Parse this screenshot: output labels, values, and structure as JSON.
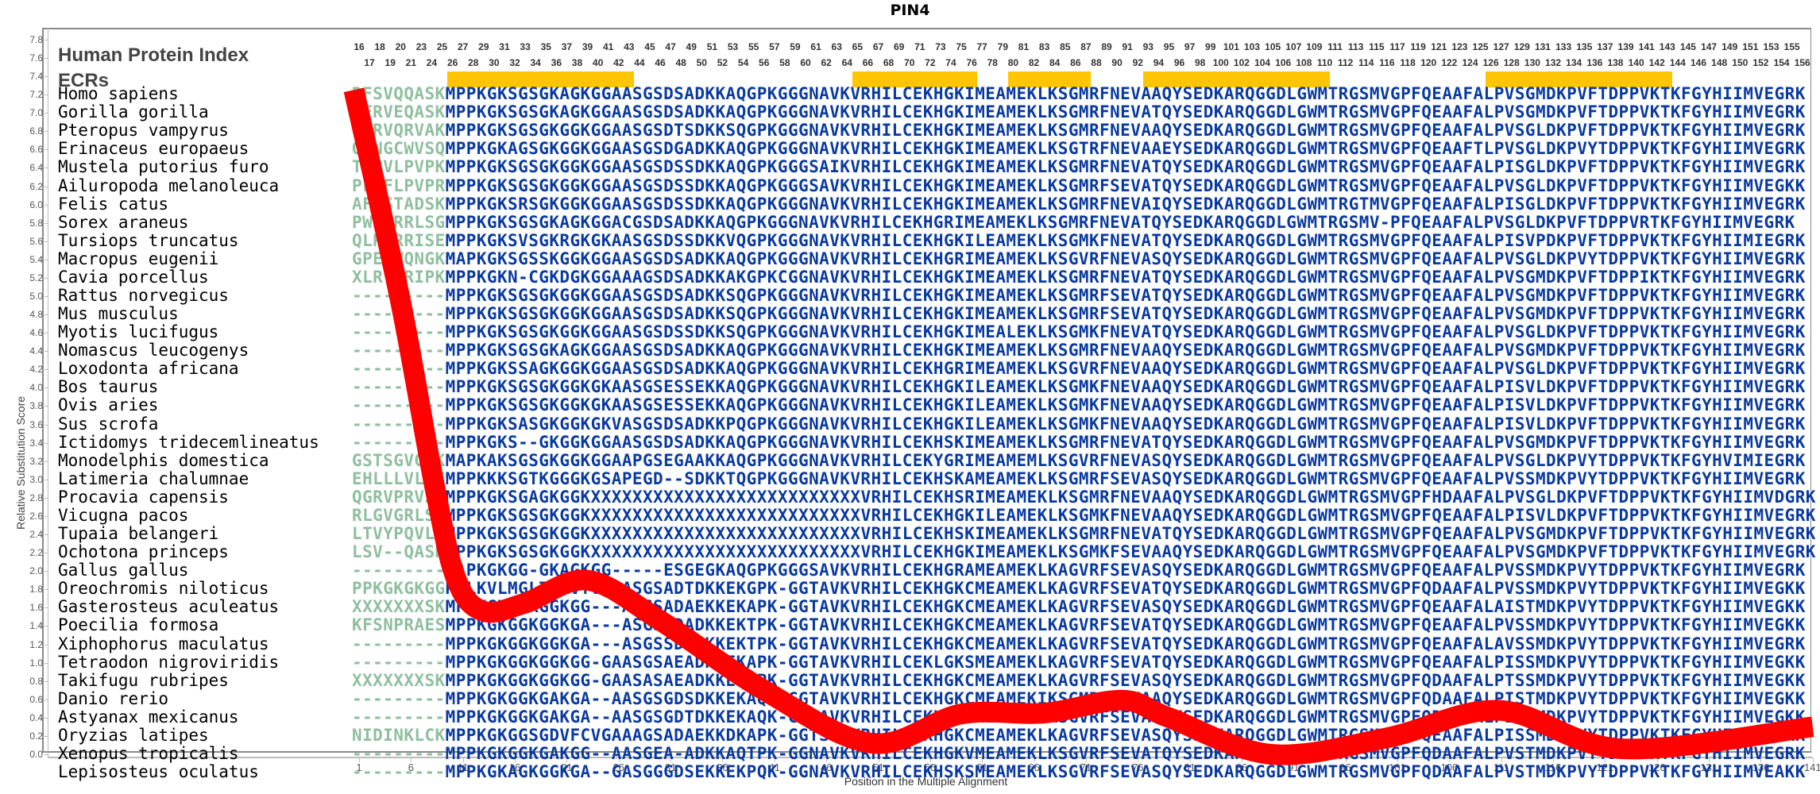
{
  "title": "PIN4",
  "header": {
    "line1": "Human Protein Index",
    "line2": "ECRs"
  },
  "y_axis": {
    "label": "Relative Substitution Score",
    "ticks": [
      "7.8",
      "7.6",
      "7.4",
      "7.2",
      "7.0",
      "6.8",
      "6.6",
      "6.4",
      "6.2",
      "6.0",
      "5.8",
      "5.6",
      "5.4",
      "5.2",
      "5.0",
      "4.8",
      "4.6",
      "4.4",
      "4.2",
      "4.0",
      "3.8",
      "3.6",
      "3.4",
      "3.2",
      "3.0",
      "2.8",
      "2.6",
      "2.4",
      "2.2",
      "2.0",
      "1.8",
      "1.6",
      "1.4",
      "1.2",
      "1.0",
      "0.8",
      "0.6",
      "0.4",
      "0.2",
      "0.0"
    ]
  },
  "x_axis": {
    "label": "Position in the Multiple Alignment",
    "ticks": [
      "1",
      "6",
      "11",
      "16",
      "21",
      "26",
      "31",
      "36",
      "41",
      "46",
      "51",
      "56",
      "61",
      "66",
      "71",
      "76",
      "81",
      "86",
      "91",
      "96",
      "101",
      "106",
      "111",
      "116",
      "121",
      "126",
      "131",
      "136",
      "141"
    ]
  },
  "ruler_labels": [
    "16",
    "17",
    "18",
    "19",
    "20",
    "21",
    "23",
    "24",
    "25",
    "26",
    "27",
    "28",
    "29",
    "30",
    "31",
    "32",
    "33",
    "34",
    "35",
    "36",
    "37",
    "38",
    "39",
    "40",
    "41",
    "42",
    "43",
    "44",
    "45",
    "46",
    "47",
    "48",
    "49",
    "50",
    "51",
    "52",
    "53",
    "54",
    "55",
    "56",
    "57",
    "58",
    "59",
    "60",
    "61",
    "62",
    "63",
    "64",
    "65",
    "66",
    "67",
    "68",
    "69",
    "70",
    "71",
    "72",
    "73",
    "74",
    "75",
    "76",
    "77",
    "78",
    "79",
    "80",
    "81",
    "82",
    "83",
    "84",
    "85",
    "86",
    "87",
    "88",
    "89",
    "90",
    "91",
    "92",
    "93",
    "94",
    "95",
    "96",
    "97",
    "98",
    "99",
    "100",
    "101",
    "102",
    "103",
    "104",
    "105",
    "106",
    "107",
    "108",
    "109",
    "110",
    "111",
    "112",
    "113",
    "114",
    "115",
    "116",
    "117",
    "118",
    "119",
    "120",
    "121",
    "122",
    "123",
    "124",
    "125",
    "126",
    "127",
    "128",
    "129",
    "130",
    "131",
    "132",
    "133",
    "134",
    "135",
    "136",
    "137",
    "138",
    "139",
    "140",
    "141",
    "142",
    "143",
    "144",
    "145",
    "146",
    "147",
    "148",
    "149",
    "150",
    "151",
    "152",
    "153",
    "154",
    "155",
    "156"
  ],
  "ecr_bars": [
    {
      "start_col": 9,
      "end_col": 26
    },
    {
      "start_col": 48,
      "end_col": 59
    },
    {
      "start_col": 63,
      "end_col": 70
    },
    {
      "start_col": 76,
      "end_col": 93
    },
    {
      "start_col": 109,
      "end_col": 126
    }
  ],
  "colors": {
    "ecr": "#ffc600",
    "curve": "#ff0000",
    "flank": "#8fbf9f",
    "aligned": "#0a3aa0"
  },
  "alignment": [
    {
      "species": "Homo sapiens",
      "flank": "RFSVQQASK",
      "seq": "MPPKGKSGSGKAGKGGAASGSDSADKKAQGPKGGGNAVKVRHILCEKHGKIMEAMEKLKSGMRFNEVAAQYSEDKARQGGDLGWMTRGSMVGPFQEAAFALPVSGMDKPVFTDPPVKTKFGYHIIMVEGRK"
    },
    {
      "species": "Gorilla gorilla",
      "flank": "QFRVEQASK",
      "seq": "MPPKGKSGSGKAGKGGAASGSDSADKKAQGPKGGGNAVKVRHILCEKHGKIMEAMEKLKSGMRFNEVATQYSEDKARQGGDLGWMTRGSMVGPFQEAAFALPVSGMDKPVFTDPPVKTKFGYHIIMVEGRK"
    },
    {
      "species": "Pteropus vampyrus",
      "flank": "QLRVQRVAK",
      "seq": "MPPKGKSGSGKGGKGGAASGSDTSDKKSQGPKGGGNAVKVRHILCEKHGKIMEAMEKLKSGMRFNEVAAQYSEDKARQGGDLGWMTRGSMVGPFQEAAFALPVSGLDKPVFTDPPVKTKFGYHIIMVEGRK"
    },
    {
      "species": "Erinaceus europaeus",
      "flank": "QLNGCWVSQ",
      "seq": "MPPKGKAGSGKGGKGGAASGSDGADKKAQGPKGGGNAVKVRHILCEKHGKIMEAMEKLKSGTRFNEVAAEYSEDKARQGGDLGWMTRGSMVGPFQEAAFTLPVSGLDKPVYTDPPVKTKFGYHIIMVEGRK"
    },
    {
      "species": "Mustela putorius furo",
      "flank": "TLRVLPVPK",
      "seq": "MPPKGKSGSGKGGKGGAASGSDSSDKKAQGPKGGGSAIKVRHILCEKHGKIMEAMEKLKSGMRFNEVATQYSEDKARQGGDLGWMTRGSMVGPFQEAAFALPISGLDKPVFTDPPVKTKFGYHIIMVEGRK"
    },
    {
      "species": "Ailuropoda melanoleuca",
      "flank": "PLRFLPVPR",
      "seq": "MPPKGKSGSGKGGKGGAASGSDSSDKKAQGPKGGGSAVKVRHILCEKHGKIMEAMEKLKSGMRFSEVATQYSEDKARQGGDLGWMTRGSMVGPFQEAAFALPVSGLDKPVFTDPPVKTKFGYHIIMVEGKK"
    },
    {
      "species": "Felis catus",
      "flank": "AFDSTADSK",
      "seq": "MPPKGKSRSGKGGKGGAASGSDSSDKKAQGPKGGGNAVKVRHILCEKHGKIMEAMEKLKSGMRFNEVAIQYSEDKARQGGDLGWMTRGTMVGPFQEAAFALPISGLDKPVFTDPPVKTKFGYHIIMVEGRK"
    },
    {
      "species": "Sorex araneus",
      "flank": "PWRSRRLSG",
      "seq": "MPPKGKSGSGKAGKGGACGSDSADKKAQGPKGGGNAVKVRHILCEKHGRIMEAMEKLKSGMRFNEVATQYSEDKARQGGDLGWMTRGSMV-PFQEAAFALPVSGLDKPVFTDPPVRTKFGYHIIMVEGRK"
    },
    {
      "species": "Tursiops truncatus",
      "flank": "QLRARRISE",
      "seq": "MPPKGKSVSGKRGKGKAASGSDSSDKKVQGPKGGGNAVKVRHILCEKHGKILEAMEKLKSGMKFNEVATQYSEDKARQGGDLGWMTRGSMVGPFQEAAFALPISVPDKPVFTDPPVKTKFGYHIIMIEGRK"
    },
    {
      "species": "Macropus eugenii",
      "flank": "GPERWQNGK",
      "seq": "MAPKGKSGSSKGGKGGAASGSDSADKKAQGPKGGGNAVKVRHILCEKHGRIMEAMEKLKSGVRFNEVASQYSEDKARQGGDLGWMTRGSMVGPFQEAAFALPVSGLDKPVYTDPPVKTKFGYHIIMVEGRK"
    },
    {
      "species": "Cavia porcellus",
      "flank": "XLRVQRIPK",
      "seq": "MPPKGKN-CGKDGKGGAAAGSDSADKKAKGPKCGGNAVKVRHILCEKHGKIMEAMEKLKSGMRFNEVATQYSEDKARQGGDLGWMTRGSMVGPFQEAAFALPVSGMDKPVFTDPPIKTKFGYHIIMVEGRK"
    },
    {
      "species": "Rattus norvegicus",
      "flank": "---------",
      "seq": "MPPKGKSGSGKGGKGGAASGSDSADKKSQGPKGGGNAVKVRHILCEKHGKIMEAMEKLKSGMRFSEVATQYSEDKARQGGDLGWMTRGSMVGPFQEAAFALPVSGMDKPVFTDPPVKTKFGYHIIMVEGRK"
    },
    {
      "species": "Mus musculus",
      "flank": "---------",
      "seq": "MPPKGKSGSGKGGKGGAASGSDSADKKSQGPKGGGNAVKVRHILCEKHGKIMEAMEKLKSGMRFSEVATQYSEDKARQGGDLGWMTRGSMVGPFQEAAFALPVSGMDKPVFTDPPVKTKFGYHIIMVEGRK"
    },
    {
      "species": "Myotis lucifugus",
      "flank": "---------",
      "seq": "MPPKGKSGSGKGGKGGAASGSDSSDKKSQGPKGGGNAVKVRHILCEKHGKIMEALEKLKSGMKFNEVATQYSEDKARQGGDLGWMTRGSMVGPFQEAAFALPVSGLDKPVFTDPPVKTKFGYHIIMVEGRK"
    },
    {
      "species": "Nomascus leucogenys",
      "flank": "---------",
      "seq": "MPPKGKSGSGKAGKGGAASGSDSADKKAQGPKGGGNAVKVRHILCEKHGKIMEAMEKLKSGMRFNEVAAQYSEDKARQGGDLGWMTRGSMVGPFQEAAFALPVSGMDKPVFTDPPVKTKFGYHIIMVEGRK"
    },
    {
      "species": "Loxodonta africana",
      "flank": "---------",
      "seq": "MPPKGKSSAGKGGKGGAASGSDSADKKAQGPKGGGNAVKVRHILCEKHGRIMEAMEKLKSGVRFNEVAAQYSEDKARQGGDLGWMTRGSMVGPFQEAAFALPVSGLDKPVFTDPPVKTKFGYHIIMVEGRK"
    },
    {
      "species": "Bos taurus",
      "flank": "---------",
      "seq": "MPPKGKSGSGKGGKGKAASGSESSEKKAQGPKGGGNAVKVRHILCEKHGKILEAMEKLKSGMKFNEVAAQYSEDKARQGGDLGWMTRGSMVGPFQEAAFALPISVLDKPVFTDPPVKTKFGYHIIMVEGRK"
    },
    {
      "species": "Ovis aries",
      "flank": "---------",
      "seq": "MPPKGKSGSGKGGKGKAASGSESSEKKAQGPKGGGNAVKVRHILCEKHGKILEAMEKLKSGMKFNEVAAQYSEDKARQGGDLGWMTRGSMVGPFQEAAFALPISVLDKPVFTDPPVKTKFGYHIIMVEGRK"
    },
    {
      "species": "Sus scrofa",
      "flank": "---------",
      "seq": "MPPKGKSASGKGGKGKVASGSDSADKKPQGPKGGGNAVKVRHILCEKHGKILEAMEKLKSGMKFNEVAAQYSEDKARQGGDLGWMTRGSMVGPFQEAAFALPISVLDKPVFTDPPVKTKFGYHIIMVEGRK"
    },
    {
      "species": "Ictidomys tridecemlineatus",
      "flank": "---------",
      "seq": "MPPKGKS--GKGGKGGAASGSDSADKKAQGPKGGGNAVKVRHILCEKHSKIMEAMEKLKSGMRFNEVATQYSEDKARQGGDLGWMTRGSMVGPFQEAAFALPVSGMDKPVFTDPPVKTKFGYHIIMVEGRK"
    },
    {
      "species": "Monodelphis domestica",
      "flank": "GSTSGVGRK",
      "seq": "MAPKAKSGSGKGGKGGAAPGSEGAAKKAQGPKGGGNAVKVRHILCEKYGRIMEAMEMLKSGVRFNEVASQYSEDKARQGGDLGWMTRGSMVGPFQEAAFALPVSGLDKPVYTDPPVKTKFGYHVIMIEGRK"
    },
    {
      "species": "Latimeria chalumnae",
      "flank": "EHLLLVL-E",
      "seq": "MPPKKKSGTKGGGKGSAPEGD--SDKKTQGPKGGGNAVKVRHILCEKHSKAMEAMEKLKSGMRFSEVASQYSEDKARQGGDLGWMTRGSMVGPFQEAAFALPVSSMDKPVYTDPPVKTKFGYHIIMVEGRK"
    },
    {
      "species": "Procavia capensis",
      "flank": "QGRVPRVSE",
      "seq": "MPPKGKSGAGKGGKXXXXXXXXXXXXXXXXXXXXXXXXXXVRHILCEKHSRIMEAMEKLKSGMRFNEVAAQYSEDKARQGGDLGWMTRGSMVGPFHDAAFALPVSGLDKPVFTDPPVKTKFGYHIIMVDGRK"
    },
    {
      "species": "Vicugna pacos",
      "flank": "RLGVGRLSE",
      "seq": "MPPKGKSGSGKGGKXXXXXXXXXXXXXXXXXXXXXXXXXXVRHILCEKHGKILEAMEKLKSGMKFNEVAAQYSEDKARQGGDLGWMTRGSMVGPFQEAAFALPISVLDKPVFTDPPVKTKFGYHIIMVEGRK"
    },
    {
      "species": "Tupaia belangeri",
      "flank": "LTVYPQVLK",
      "seq": "MPPKGKSGSGKGGKXXXXXXXXXXXXXXXXXXXXXXXXXXVRHILCEKHSKIMEAMEKLKSGMRFNEVATQYSEDKARQGGDLGWMTRGSMVGPFQEAAFALPVSGMDKPVFTDPPVKTKFGYHIIMVEGRK"
    },
    {
      "species": "Ochotona princeps",
      "flank": "LSV--QASK",
      "seq": "MPPKGKSGSGKGGKXXXXXXXXXXXXXXXXXXXXXXXXXXVRHILCEKHGKIMEAMEKLKSGMKFSEVAAQYSEDKARQGGDLGWMTRGSMVGPFQEAAFALPVSGMDKPVFTDPPVKTKFGYHIIMVEGRK"
    },
    {
      "species": "Gallus gallus",
      "flank": "---------",
      "seq": "MAPKGKGG-GKAGKGG-----ESGEGKAQGPKGGGSAVKVRHILCEKHGRAMEAMEKLKAGVRFSEVASQYSEDKARQGGDLGWMTRGSMVGPFQEAAFALPVSSMDKPVYTDPPVKTKFGYHIIMVEGRK"
    },
    {
      "species": "Oreochromis niloticus",
      "flank": "PPKGKGKGG",
      "seq": "KELKVLMGLTGAVYVGAASGSADTDKKEKGPK-GGTAVKVRHILCEKHGKCMEAMEKLKAGVRFSEVATQYSEDKARQGGDLGWMTRGSMVGPFQDAAFALPVSSMDKPVYTDPPVKTKFGYHIIMVEGKK"
    },
    {
      "species": "Gasterosteus aculeatus",
      "flank": "XXXXXXXSK",
      "seq": "MPPKGKGGKGGKGG---ASGSADAEKKEKAPK-GGTAVKVRHILCEKHGKCMEAMEKLKAGVRFSEVASQYSEDKARQGGDLGWMTRGSMVGPFQEAAFALAISTMDKPVYTDPPVKTKFGYHIIMVEGKK"
    },
    {
      "species": "Poecilia formosa",
      "flank": "KFSNPRAES",
      "seq": "MPPKGKGGKGGKGA---ASGSSDADKKEKTPK-GGTAVKVRHILCEKHGKCMEAMEKLKAGVRFSEVATQYSEDKARQGGDLGWMTRGSMVGPFQEAAFALPVSSMDKPVYTDPPVKTKFGYHIIMVEGKK"
    },
    {
      "species": "Xiphophorus maculatus",
      "flank": "---------",
      "seq": "MPPKGKGGKGGKGA---ASGSSDADKKEKTPK-GGTAVKVRHILCEKHGKCMEAMEKLKAGVRFSEVATQYSEDKARQGGDLGWMTRGSMVGPFQEAAFALAVSSMDKPVYTDPPVKTKFGYHIIMVEGRK"
    },
    {
      "species": "Tetraodon nigroviridis",
      "flank": "---------",
      "seq": "MPPKGKGGKGGKGG-GAASGSAEADKKEKAPK-GGTAVKVRHILCEKLGKSMEAMEKLKAGVRFSEVATQYSEDKARQGGDLGWMTRGSMVGPFQEAAFALPISSMDKPVYTDPPVKTKFGYHIIMVEGKK"
    },
    {
      "species": "Takifugu rubripes",
      "flank": "XXXXXXXSK",
      "seq": "MPPKGKGGKGGKGG-GAASASAEADKKEKAPK-GGTAVKVRHILCEKHGKCMEAMEKLKAGVRFSEVASQYSEDKARQGGDLGWMTRGSMVGPFQDAAFALPTSSMDKPVYTDPPVKTKFGYHIIMVEGKK"
    },
    {
      "species": "Danio rerio",
      "flank": "---------",
      "seq": "MPPKGKGGKGAKGA--AASGSGDSDKKEKAQK-GGTAVKVRHILCEKHGKCMEAMEKIKSGMRFSEVAAQYSEDKARQGGDLGWMTRGSMVGPFQDAAFALPISTMDKPVYTDPPVKTKFGYHIIMVEGKK"
    },
    {
      "species": "Astyanax mexicanus",
      "flank": "---------",
      "seq": "MPPKGKGGKGAKGA--AASGSGDTDKKEKAQK-GGTAVKVRHILCEKHGKCMEAMEKLKSGVRFSEVASQYSEDKARQGGDLGWMTRGSMVGPFQDAAFALPISTMDKPVYTDPPVKTKFGYHIIMVEGKK"
    },
    {
      "species": "Oryzias latipes",
      "flank": "NIDINKLCK",
      "seq": "MPPKGKGGSGDVFCVGAAAGSADAEKKDKAPK-GGTSVKVRHILCEKHGKCMEAMEKLKAGVRFSEVASQYSEDKARQGGDLGWMTRGSMVGPFQEAAFALPISSMDKPVYTDPPVKTKFGYHIIMVEGKK"
    },
    {
      "species": "Xenopus tropicalis",
      "flank": "---------",
      "seq": "MPPKGKGGKGAKGG--AASGEA-ADKKAQTPK-GGNAVKVRHILCEKHGKVMEAMEKLKSGVRFSEVATQYSEDKARQGGDLGWMTRGSMVGPFQDAAFALPVSTMDKPVYTDPPVKTKFGYHIIMVEGRK"
    },
    {
      "species": "Lepisosteus oculatus",
      "flank": "---------",
      "seq": "MPPKGKAGKGGKGA--GASGGGDSEKKEKPQK-GGNAVKVRHILCEKHSKSMEAMEKLKSGVRFSEVASQYSEDKARQGGDLGWMTRGSMVGPFQDAAFALPVSTMDKPVYTDPPVKTKFGYHIIMVEAKK"
    }
  ],
  "chart_data": {
    "type": "line",
    "title": "PIN4",
    "xlabel": "Position in the Multiple Alignment",
    "ylabel": "Relative Substitution Score",
    "xlim": [
      1,
      141
    ],
    "ylim": [
      0.0,
      7.8
    ],
    "grid": false,
    "series": [
      {
        "name": "Relative Substitution Score",
        "color": "#ff0000",
        "x": [
          0.5,
          5,
          8.3,
          10.4,
          13,
          17,
          23,
          30,
          40,
          50.4,
          59,
          67,
          74.5,
          79,
          88.8,
          100,
          110.8,
          122.6,
          141
        ],
        "y": [
          7.25,
          4.94,
          2.91,
          1.9,
          1.56,
          1.65,
          1.9,
          1.46,
          0.7,
          0.12,
          0.44,
          0.45,
          0.59,
          0.4,
          0.0,
          0.18,
          0.48,
          0.06,
          0.3
        ]
      }
    ],
    "x_ticks": [
      1,
      6,
      11,
      16,
      21,
      26,
      31,
      36,
      41,
      46,
      51,
      56,
      61,
      66,
      71,
      76,
      81,
      86,
      91,
      96,
      101,
      106,
      111,
      116,
      121,
      126,
      131,
      136,
      141
    ],
    "y_ticks": [
      0.0,
      0.2,
      0.4,
      0.6,
      0.8,
      1.0,
      1.2,
      1.4,
      1.6,
      1.8,
      2.0,
      2.2,
      2.4,
      2.6,
      2.8,
      3.0,
      3.2,
      3.4,
      3.6,
      3.8,
      4.0,
      4.2,
      4.4,
      4.6,
      4.8,
      5.0,
      5.2,
      5.4,
      5.6,
      5.8,
      6.0,
      6.2,
      6.4,
      6.6,
      6.8,
      7.0,
      7.2,
      7.4,
      7.6,
      7.8
    ],
    "annotations": [
      "Human Protein Index",
      "ECRs"
    ],
    "ecr_regions_alignment_columns": [
      [
        26,
        38
      ],
      [
        56,
        72
      ],
      [
        78,
        87
      ],
      [
        96,
        120
      ],
      [
        132,
        152
      ]
    ]
  }
}
